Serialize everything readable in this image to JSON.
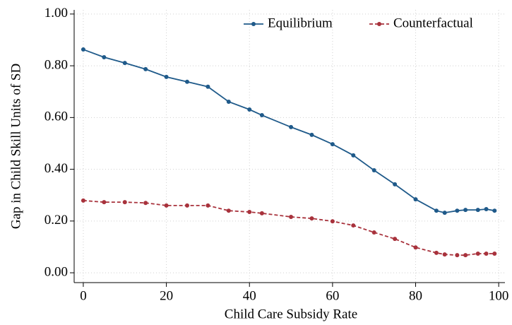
{
  "chart_data": {
    "type": "line",
    "xlabel": "Child Care Subsidy Rate",
    "ylabel": "Gap in Child Skill Units of SD",
    "x": [
      0,
      5,
      10,
      15,
      20,
      25,
      30,
      35,
      40,
      43,
      50,
      55,
      60,
      65,
      70,
      75,
      80,
      85,
      87,
      90,
      92,
      95,
      97,
      99
    ],
    "series": [
      {
        "name": "Equilibrium",
        "color": "#1f5a8a",
        "dash": false,
        "values": [
          0.863,
          0.833,
          0.811,
          0.787,
          0.757,
          0.738,
          0.719,
          0.661,
          0.631,
          0.609,
          0.563,
          0.533,
          0.497,
          0.454,
          0.396,
          0.342,
          0.284,
          0.24,
          0.232,
          0.24,
          0.243,
          0.243,
          0.246,
          0.24
        ]
      },
      {
        "name": "Counterfactual",
        "color": "#a8323c",
        "dash": true,
        "values": [
          0.279,
          0.273,
          0.273,
          0.27,
          0.26,
          0.26,
          0.26,
          0.24,
          0.235,
          0.23,
          0.216,
          0.21,
          0.199,
          0.183,
          0.156,
          0.131,
          0.098,
          0.077,
          0.071,
          0.068,
          0.068,
          0.074,
          0.074,
          0.074
        ]
      }
    ],
    "xlim": [
      -2.2,
      101.5
    ],
    "ylim": [
      -0.038,
      1.016
    ],
    "xticks": [
      0,
      20,
      40,
      60,
      80,
      100
    ],
    "yticks": [
      {
        "value": 0,
        "label": "0.00"
      },
      {
        "value": 0.2,
        "label": "0.20"
      },
      {
        "value": 0.4,
        "label": "0.40"
      },
      {
        "value": 0.6,
        "label": "0.60"
      },
      {
        "value": 0.8,
        "label": "0.80"
      },
      {
        "value": 1,
        "label": "1.00"
      }
    ],
    "grid": true,
    "legend": "top-right"
  }
}
